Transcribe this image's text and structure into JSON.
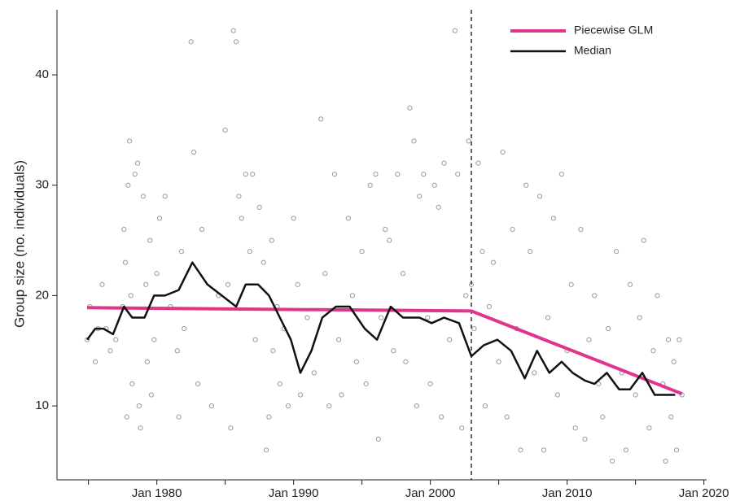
{
  "chart_data": {
    "type": "line",
    "y_label": "Group size (no. individuals)",
    "xlim": [
      1972.7,
      2020.2
    ],
    "ylim": [
      3.3,
      45.9
    ],
    "xticks": [
      {
        "value": 1980,
        "label": "Jan 1980"
      },
      {
        "value": 1990,
        "label": "Jan 1990"
      },
      {
        "value": 2000,
        "label": "Jan 2000"
      },
      {
        "value": 2010,
        "label": "Jan 2010"
      },
      {
        "value": 2020,
        "label": "Jan 2020"
      }
    ],
    "xminorticks": [
      1975,
      1985,
      1995,
      2005,
      2015
    ],
    "yticks": [
      10,
      20,
      30,
      40
    ],
    "vline": 2003.0,
    "legend": "upper right",
    "points": {
      "color": "#9a9a9a",
      "x": [
        1974.9,
        1975.1,
        1975.5,
        1975.7,
        1976.0,
        1976.3,
        1976.6,
        1977.0,
        1977.5,
        1977.6,
        1977.7,
        1977.8,
        1977.9,
        1978.0,
        1978.1,
        1978.2,
        1978.4,
        1978.6,
        1978.7,
        1978.8,
        1979.0,
        1979.2,
        1979.3,
        1979.5,
        1979.6,
        1979.8,
        1980.0,
        1980.2,
        1980.6,
        1981.0,
        1981.5,
        1981.6,
        1981.8,
        1982.0,
        1982.5,
        1982.7,
        1983.0,
        1983.3,
        1984.0,
        1984.5,
        1985.0,
        1985.2,
        1985.4,
        1985.6,
        1985.8,
        1986.0,
        1986.2,
        1986.5,
        1986.8,
        1987.0,
        1987.2,
        1987.5,
        1987.8,
        1988.0,
        1988.2,
        1988.4,
        1988.5,
        1988.8,
        1989.0,
        1989.3,
        1989.6,
        1990.0,
        1990.3,
        1990.5,
        1991.0,
        1991.5,
        1992.0,
        1992.3,
        1992.6,
        1993.0,
        1993.3,
        1993.5,
        1994.0,
        1994.3,
        1994.6,
        1995.0,
        1995.3,
        1995.6,
        1996.0,
        1996.2,
        1996.4,
        1996.7,
        1997.0,
        1997.3,
        1997.6,
        1998.0,
        1998.2,
        1998.5,
        1998.8,
        1999.0,
        1999.2,
        1999.5,
        1999.8,
        2000.0,
        2000.3,
        2000.6,
        2000.8,
        2001.0,
        2001.4,
        2001.8,
        2002.0,
        2002.3,
        2002.6,
        2002.8,
        2003.0,
        2003.2,
        2003.5,
        2003.8,
        2004.0,
        2004.3,
        2004.6,
        2005.0,
        2005.3,
        2005.6,
        2006.0,
        2006.3,
        2006.6,
        2007.0,
        2007.3,
        2007.6,
        2008.0,
        2008.3,
        2008.6,
        2009.0,
        2009.3,
        2009.6,
        2010.0,
        2010.3,
        2010.6,
        2011.0,
        2011.3,
        2011.6,
        2012.0,
        2012.3,
        2012.6,
        2013.0,
        2013.3,
        2013.6,
        2014.0,
        2014.3,
        2014.6,
        2015.0,
        2015.3,
        2015.6,
        2016.0,
        2016.3,
        2016.6,
        2017.0,
        2017.2,
        2017.4,
        2017.6,
        2017.8,
        2018.0,
        2018.2,
        2018.4
      ],
      "values": [
        16,
        19,
        14,
        17,
        21,
        17,
        15,
        16,
        19,
        26,
        23,
        9,
        30,
        34,
        20,
        12,
        31,
        32,
        10,
        8,
        29,
        21,
        14,
        25,
        11,
        16,
        22,
        27,
        29,
        19,
        15,
        9,
        24,
        17,
        43,
        33,
        12,
        26,
        10,
        20,
        35,
        21,
        8,
        44,
        43,
        29,
        27,
        31,
        24,
        31,
        16,
        28,
        23,
        6,
        9,
        25,
        15,
        19,
        12,
        17,
        10,
        27,
        21,
        11,
        18,
        13,
        36,
        22,
        10,
        31,
        16,
        11,
        27,
        20,
        14,
        24,
        12,
        30,
        31,
        7,
        18,
        26,
        25,
        15,
        31,
        22,
        14,
        37,
        34,
        10,
        29,
        31,
        18,
        12,
        30,
        28,
        9,
        32,
        16,
        44,
        31,
        8,
        20,
        34,
        21,
        17,
        32,
        24,
        10,
        19,
        23,
        14,
        33,
        9,
        26,
        17,
        6,
        30,
        24,
        13,
        29,
        6,
        18,
        27,
        11,
        31,
        15,
        21,
        8,
        26,
        7,
        16,
        20,
        12,
        9,
        17,
        5,
        24,
        13,
        6,
        21,
        11,
        18,
        25,
        8,
        15,
        20,
        12,
        5,
        16,
        9,
        14,
        6,
        16,
        11
      ]
    },
    "series": [
      {
        "name": "Piecewise GLM",
        "color": "#e0358a",
        "width": 4,
        "x": [
          1974.9,
          2003.0,
          2018.4
        ],
        "values": [
          18.9,
          18.6,
          11.1
        ]
      },
      {
        "name": "Median",
        "color": "#111111",
        "width": 2.5,
        "x": [
          1974.9,
          1975.5,
          1976.1,
          1976.8,
          1977.6,
          1978.2,
          1979.1,
          1979.8,
          1980.6,
          1981.6,
          1982.6,
          1983.7,
          1985.8,
          1986.5,
          1987.4,
          1988.2,
          1989.0,
          1989.8,
          1990.5,
          1991.3,
          1992.1,
          1993.1,
          1994.1,
          1995.2,
          1996.1,
          1997.1,
          1998.0,
          1999.2,
          2000.1,
          2001.0,
          2002.1,
          2003.0,
          2003.9,
          2004.9,
          2005.9,
          2006.9,
          2007.8,
          2008.7,
          2009.6,
          2010.4,
          2011.3,
          2012.0,
          2012.9,
          2013.8,
          2014.6,
          2015.5,
          2016.4,
          2017.3,
          2017.9
        ],
        "values": [
          16,
          17,
          17,
          16.5,
          19,
          18,
          18,
          20,
          20,
          20.5,
          23,
          21,
          19,
          21,
          21,
          20,
          18,
          16,
          13,
          15,
          18,
          19,
          19,
          17,
          16,
          19,
          18,
          18,
          17.5,
          18,
          17.5,
          14.5,
          15.5,
          16,
          15,
          12.5,
          15,
          13,
          14,
          13,
          12.3,
          12,
          13,
          11.5,
          11.5,
          13,
          11,
          11,
          11
        ]
      }
    ]
  }
}
